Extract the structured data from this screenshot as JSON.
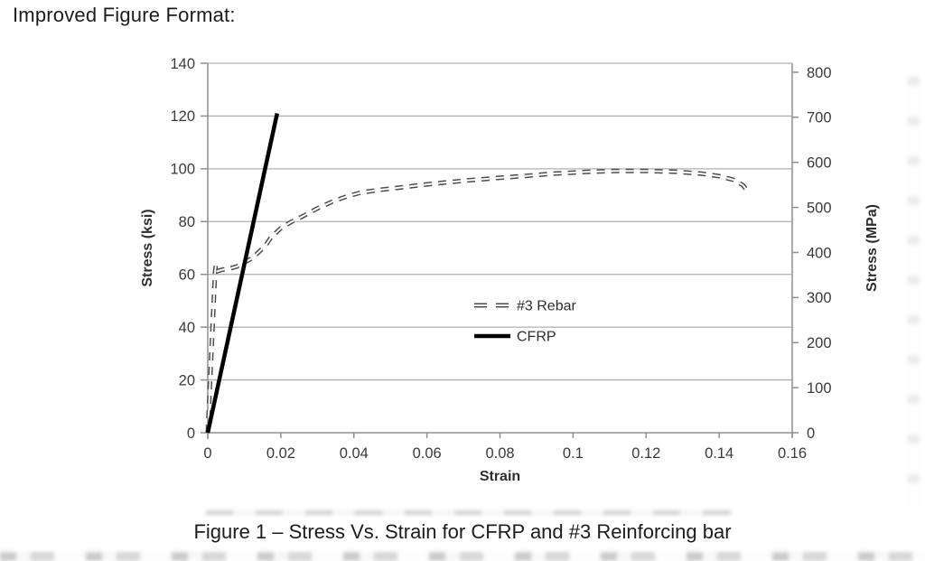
{
  "page": {
    "heading": "Improved Figure Format:",
    "caption": "Figure 1 – Stress Vs. Strain for CFRP and #3 Reinforcing bar"
  },
  "style": {
    "background": "#ffffff",
    "grid_color": "#b0b0b0",
    "axis_color": "#8f8f8f",
    "tick_text_color": "#3a3a3a",
    "rebar_color": "#4d4d4d",
    "cfrp_color": "#000000"
  },
  "chart_data": {
    "type": "line",
    "title": "",
    "xlabel": "Strain",
    "xlim": [
      0,
      0.16
    ],
    "x_ticks": [
      0,
      0.02,
      0.04,
      0.06,
      0.08,
      0.1,
      0.12,
      0.14,
      0.16
    ],
    "x_tick_labels": [
      "0",
      "0.02",
      "0.04",
      "0.06",
      "0.08",
      "0.1",
      "0.12",
      "0.14",
      "0.16"
    ],
    "grid": "horizontal",
    "left_axis": {
      "label": "Stress (ksi)",
      "lim": [
        0,
        140
      ],
      "ticks": [
        0,
        20,
        40,
        60,
        80,
        100,
        120,
        140
      ]
    },
    "right_axis": {
      "label": "Stress (MPa)",
      "lim": [
        0,
        800
      ],
      "ticks": [
        0,
        100,
        200,
        300,
        400,
        500,
        600,
        700,
        800
      ]
    },
    "legend": {
      "position": "inside-center",
      "entries": [
        {
          "label": "#3 Rebar",
          "style": "dashed",
          "color": "#4d4d4d"
        },
        {
          "label": "CFRP",
          "style": "solid",
          "color": "#000000"
        }
      ]
    },
    "series": [
      {
        "name": "#3 Rebar",
        "style": "dashed",
        "color": "#4d4d4d",
        "points": [
          [
            0.0,
            0
          ],
          [
            0.001,
            30
          ],
          [
            0.0018,
            55
          ],
          [
            0.002,
            61
          ],
          [
            0.0022,
            63.5
          ],
          [
            0.0026,
            61.2
          ],
          [
            0.004,
            61.8
          ],
          [
            0.006,
            62.2
          ],
          [
            0.008,
            63.0
          ],
          [
            0.01,
            64.5
          ],
          [
            0.012,
            66.0
          ],
          [
            0.014,
            68.5
          ],
          [
            0.016,
            71.3
          ],
          [
            0.0173,
            74.0
          ],
          [
            0.02,
            77.5
          ],
          [
            0.023,
            80.0
          ],
          [
            0.026,
            82.0
          ],
          [
            0.03,
            85.0
          ],
          [
            0.034,
            87.5
          ],
          [
            0.038,
            89.5
          ],
          [
            0.042,
            91.0
          ],
          [
            0.047,
            92.0
          ],
          [
            0.052,
            92.8
          ],
          [
            0.058,
            93.8
          ],
          [
            0.065,
            94.8
          ],
          [
            0.072,
            95.7
          ],
          [
            0.08,
            96.6
          ],
          [
            0.087,
            97.3
          ],
          [
            0.095,
            98.2
          ],
          [
            0.103,
            98.8
          ],
          [
            0.112,
            99.2
          ],
          [
            0.12,
            99.2
          ],
          [
            0.128,
            98.9
          ],
          [
            0.135,
            98.2
          ],
          [
            0.14,
            97.2
          ],
          [
            0.144,
            95.8
          ],
          [
            0.1465,
            93.8
          ],
          [
            0.148,
            91.2
          ]
        ]
      },
      {
        "name": "CFRP",
        "style": "solid",
        "color": "#000000",
        "points": [
          [
            0.0,
            0
          ],
          [
            0.019,
            121
          ]
        ]
      }
    ]
  }
}
